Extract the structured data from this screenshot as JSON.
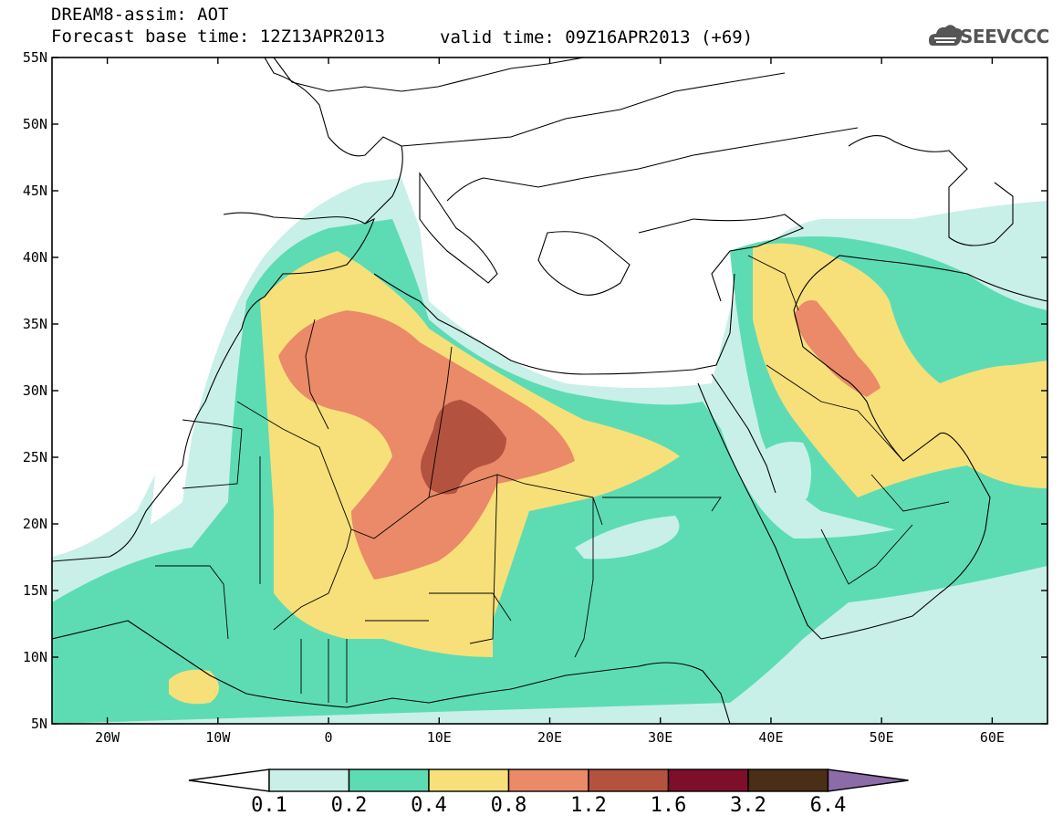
{
  "header": {
    "title": "DREAM8-assim: AOT",
    "base_time": "Forecast base time: 12Z13APR2013",
    "valid_time": "valid time: 09Z16APR2013 (+69)",
    "logo_text": "SEEVCCC"
  },
  "map": {
    "lon_range": [
      -25,
      65
    ],
    "lat_range": [
      5,
      55
    ],
    "lat_ticks": [
      "55N",
      "50N",
      "45N",
      "40N",
      "35N",
      "30N",
      "25N",
      "20N",
      "15N",
      "10N",
      "5N"
    ],
    "lon_ticks": [
      "20W",
      "10W",
      "0",
      "10E",
      "20E",
      "30E",
      "40E",
      "50E",
      "60E"
    ]
  },
  "colorbar": {
    "colors": [
      "#ffffff",
      "#c8f0e8",
      "#5ddcb4",
      "#f7e07a",
      "#ea8a68",
      "#b3523f",
      "#7d0f2a",
      "#4a2e16",
      "#8b6ba8"
    ],
    "labels": [
      "0.1",
      "0.2",
      "0.4",
      "0.8",
      "1.2",
      "1.6",
      "3.2",
      "6.4"
    ]
  },
  "legend_colors": {
    "lvl1": "#c8f0e8",
    "lvl2": "#5ddcb4",
    "lvl3": "#f7e07a",
    "lvl4": "#ea8a68",
    "lvl5": "#b3523f"
  }
}
